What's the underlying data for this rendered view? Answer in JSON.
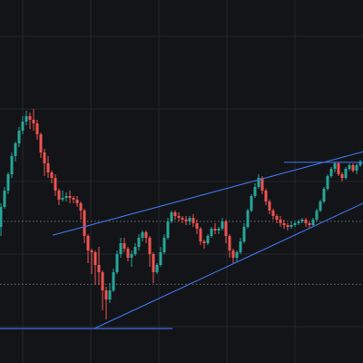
{
  "colors": {
    "background": "#131417",
    "grid": "#24262b",
    "up": "#26a69a",
    "down": "#ef5350",
    "trendline": "#3d6fe0",
    "level": "#6f7380"
  },
  "chart_data": {
    "type": "candlestick",
    "title": "",
    "xlabel": "",
    "ylabel": "",
    "grid": true,
    "x_range": [
      0,
      400
    ],
    "y_range": [
      0,
      100
    ],
    "candles": [
      [
        1,
        37.5,
        43.0,
        44.0,
        35.0
      ],
      [
        5,
        43.0,
        47.5,
        48.5,
        42.5
      ],
      [
        9,
        47.5,
        52.0,
        52.5,
        46.5
      ],
      [
        13,
        52.0,
        57.0,
        58.0,
        51.0
      ],
      [
        17,
        57.0,
        60.5,
        61.0,
        55.5
      ],
      [
        21,
        60.5,
        64.0,
        65.0,
        59.5
      ],
      [
        25,
        64.0,
        66.5,
        68.0,
        63.0
      ],
      [
        29,
        66.5,
        68.0,
        69.5,
        65.5
      ],
      [
        33,
        68.0,
        67.0,
        69.0,
        64.5
      ],
      [
        37,
        67.0,
        66.0,
        70.0,
        64.0
      ],
      [
        41,
        66.0,
        63.0,
        67.0,
        61.5
      ],
      [
        45,
        63.0,
        58.0,
        63.5,
        56.5
      ],
      [
        49,
        58.0,
        55.0,
        59.0,
        51.5
      ],
      [
        53,
        55.0,
        52.5,
        57.0,
        51.0
      ],
      [
        57,
        52.5,
        51.0,
        53.0,
        49.5
      ],
      [
        61,
        51.0,
        47.5,
        52.0,
        46.0
      ],
      [
        65,
        47.5,
        45.0,
        48.0,
        43.5
      ],
      [
        69,
        45.0,
        45.5,
        47.5,
        44.5
      ],
      [
        73,
        45.5,
        46.0,
        47.0,
        44.5
      ],
      [
        77,
        46.0,
        45.5,
        47.5,
        44.0
      ],
      [
        81,
        45.5,
        45.0,
        46.0,
        44.0
      ],
      [
        85,
        45.0,
        44.0,
        46.0,
        43.0
      ],
      [
        89,
        44.0,
        42.0,
        44.5,
        39.5
      ],
      [
        93,
        42.0,
        35.0,
        42.5,
        33.0
      ],
      [
        97,
        35.0,
        31.0,
        35.5,
        27.5
      ],
      [
        101,
        31.0,
        30.5,
        31.5,
        24.5
      ],
      [
        105,
        30.5,
        27.0,
        31.0,
        21.5
      ],
      [
        109,
        27.0,
        25.0,
        32.0,
        21.5
      ],
      [
        113,
        25.0,
        20.0,
        25.5,
        14.5
      ],
      [
        117,
        20.0,
        17.5,
        21.0,
        12.0
      ],
      [
        121,
        17.5,
        20.0,
        22.0,
        16.5
      ],
      [
        125,
        20.0,
        25.0,
        26.0,
        19.5
      ],
      [
        129,
        25.0,
        30.0,
        31.0,
        24.5
      ],
      [
        133,
        30.0,
        33.0,
        34.5,
        29.0
      ],
      [
        137,
        33.0,
        31.5,
        34.5,
        30.5
      ],
      [
        141,
        31.5,
        29.0,
        32.0,
        28.0
      ],
      [
        145,
        29.0,
        30.0,
        31.0,
        26.5
      ],
      [
        149,
        30.0,
        32.0,
        33.0,
        29.5
      ],
      [
        153,
        32.0,
        34.5,
        35.5,
        31.0
      ],
      [
        157,
        34.5,
        36.0,
        36.5,
        33.5
      ],
      [
        161,
        36.0,
        34.5,
        36.5,
        33.0
      ],
      [
        165,
        34.5,
        30.0,
        35.0,
        26.5
      ],
      [
        169,
        30.0,
        25.0,
        30.5,
        22.0
      ],
      [
        173,
        25.0,
        27.0,
        27.5,
        24.5
      ],
      [
        177,
        27.0,
        30.5,
        32.0,
        26.5
      ],
      [
        181,
        30.5,
        34.5,
        35.5,
        30.0
      ],
      [
        185,
        34.5,
        39.0,
        40.0,
        34.0
      ],
      [
        189,
        39.0,
        41.5,
        42.0,
        38.5
      ],
      [
        193,
        41.5,
        40.5,
        42.0,
        39.5
      ],
      [
        197,
        40.5,
        40.0,
        41.5,
        39.0
      ],
      [
        201,
        40.0,
        39.5,
        40.5,
        38.5
      ],
      [
        205,
        39.5,
        39.0,
        40.5,
        38.0
      ],
      [
        209,
        39.0,
        40.0,
        40.5,
        38.0
      ],
      [
        213,
        40.0,
        38.5,
        41.0,
        37.5
      ],
      [
        217,
        38.5,
        37.0,
        39.5,
        35.5
      ],
      [
        221,
        37.0,
        33.5,
        37.5,
        32.5
      ],
      [
        225,
        33.5,
        33.0,
        34.0,
        31.5
      ],
      [
        229,
        33.0,
        35.0,
        35.5,
        32.5
      ],
      [
        233,
        35.0,
        37.0,
        37.5,
        34.5
      ],
      [
        237,
        37.0,
        36.5,
        38.5,
        35.5
      ],
      [
        241,
        36.5,
        37.0,
        37.5,
        35.5
      ],
      [
        245,
        37.0,
        39.0,
        40.0,
        36.5
      ],
      [
        249,
        39.0,
        35.0,
        39.5,
        33.0
      ],
      [
        253,
        35.0,
        31.0,
        35.5,
        29.0
      ],
      [
        257,
        31.0,
        29.0,
        31.5,
        27.5
      ],
      [
        261,
        29.0,
        30.5,
        31.0,
        28.0
      ],
      [
        265,
        30.5,
        33.5,
        34.5,
        30.0
      ],
      [
        269,
        33.5,
        37.5,
        38.5,
        33.0
      ],
      [
        273,
        37.5,
        42.0,
        42.5,
        37.0
      ],
      [
        277,
        42.0,
        46.0,
        46.5,
        41.5
      ],
      [
        281,
        46.0,
        48.5,
        49.5,
        45.5
      ],
      [
        285,
        48.5,
        51.0,
        52.0,
        48.0
      ],
      [
        289,
        51.0,
        47.5,
        51.5,
        46.5
      ],
      [
        293,
        47.5,
        44.5,
        48.0,
        43.5
      ],
      [
        297,
        44.5,
        42.0,
        45.0,
        41.0
      ],
      [
        301,
        42.0,
        40.5,
        42.5,
        39.5
      ],
      [
        305,
        40.5,
        39.5,
        41.0,
        38.5
      ],
      [
        309,
        39.5,
        38.5,
        40.5,
        37.5
      ],
      [
        313,
        38.5,
        38.0,
        39.5,
        37.0
      ],
      [
        317,
        38.0,
        37.5,
        38.5,
        36.5
      ],
      [
        321,
        37.5,
        38.0,
        39.0,
        37.0
      ],
      [
        325,
        38.0,
        38.5,
        39.0,
        37.5
      ],
      [
        329,
        38.5,
        39.0,
        39.5,
        38.0
      ],
      [
        333,
        39.0,
        39.5,
        40.0,
        38.5
      ],
      [
        337,
        39.5,
        38.5,
        40.0,
        37.5
      ],
      [
        341,
        38.5,
        38.0,
        39.0,
        37.0
      ],
      [
        345,
        38.0,
        39.5,
        40.0,
        37.5
      ],
      [
        349,
        39.5,
        42.0,
        42.5,
        39.0
      ],
      [
        353,
        42.0,
        44.5,
        45.0,
        41.5
      ],
      [
        357,
        44.5,
        48.0,
        48.5,
        44.0
      ],
      [
        361,
        48.0,
        51.5,
        52.0,
        47.5
      ],
      [
        365,
        51.5,
        53.5,
        54.0,
        51.0
      ],
      [
        369,
        53.5,
        55.0,
        55.5,
        52.5
      ],
      [
        373,
        55.0,
        52.0,
        55.5,
        51.5
      ],
      [
        377,
        52.0,
        51.0,
        52.5,
        50.0
      ],
      [
        381,
        51.0,
        53.5,
        54.0,
        50.5
      ],
      [
        385,
        53.5,
        54.5,
        55.0,
        53.0
      ],
      [
        389,
        54.5,
        53.0,
        55.0,
        52.5
      ],
      [
        393,
        53.0,
        54.5,
        55.0,
        52.0
      ],
      [
        397,
        54.5,
        55.5,
        56.0,
        54.0
      ]
    ],
    "trendlines": [
      {
        "from": [
          58,
          35.2
        ],
        "to": [
          400,
          58.2
        ]
      },
      {
        "from": [
          104,
          9.5
        ],
        "to": [
          400,
          44.0
        ]
      },
      {
        "from": [
          0,
          9.5
        ],
        "to": [
          190,
          9.5
        ]
      },
      {
        "from": [
          313,
          55.3
        ],
        "to": [
          400,
          55.3
        ]
      }
    ],
    "levels": [
      {
        "y": 21.7,
        "style": "dotted"
      },
      {
        "y": 39.0,
        "style": "dotted"
      }
    ]
  }
}
